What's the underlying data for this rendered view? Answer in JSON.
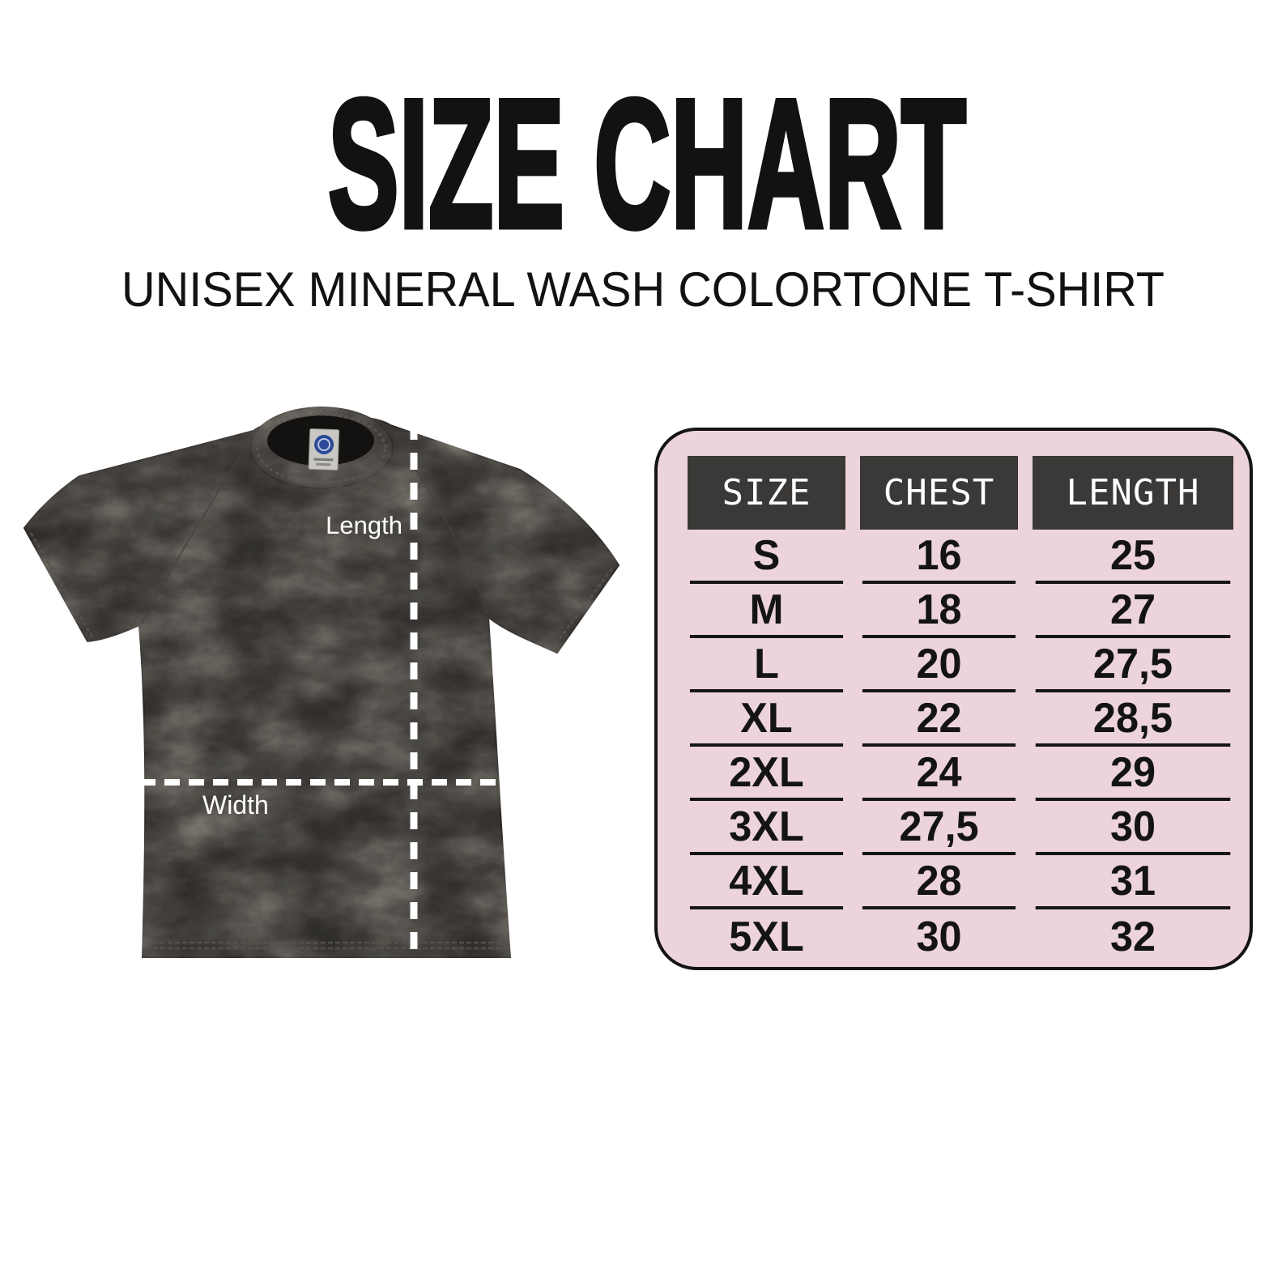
{
  "colors": {
    "page-bg": "#ffffff",
    "text": "#121212",
    "panel-bg": "#ecd4da",
    "header-bg": "#3b3937",
    "header-text": "#ffffff",
    "border": "#141414",
    "line": "#161616",
    "row-text": "#141414",
    "shirt-base": "#2b2927",
    "shirt-streak": "#9b948b",
    "dash": "#ffffff",
    "tag-blue": "#2a4a96"
  },
  "title": "SIZE CHART",
  "subtitle": "UNISEX MINERAL WASH COLORTONE T-SHIRT",
  "diagram": {
    "length_label": "Length",
    "width_label": "Width"
  },
  "chart_data": {
    "type": "table",
    "title": "SIZE CHART",
    "subtitle": "UNISEX MINERAL WASH COLORTONE T-SHIRT",
    "columns": [
      "SIZE",
      "CHEST",
      "LENGTH"
    ],
    "rows": [
      [
        "S",
        "16",
        "25"
      ],
      [
        "M",
        "18",
        "27"
      ],
      [
        "L",
        "20",
        "27,5"
      ],
      [
        "XL",
        "22",
        "28,5"
      ],
      [
        "2XL",
        "24",
        "29"
      ],
      [
        "3XL",
        "27,5",
        "30"
      ],
      [
        "4XL",
        "28",
        "31"
      ],
      [
        "5XL",
        "30",
        "32"
      ]
    ]
  }
}
